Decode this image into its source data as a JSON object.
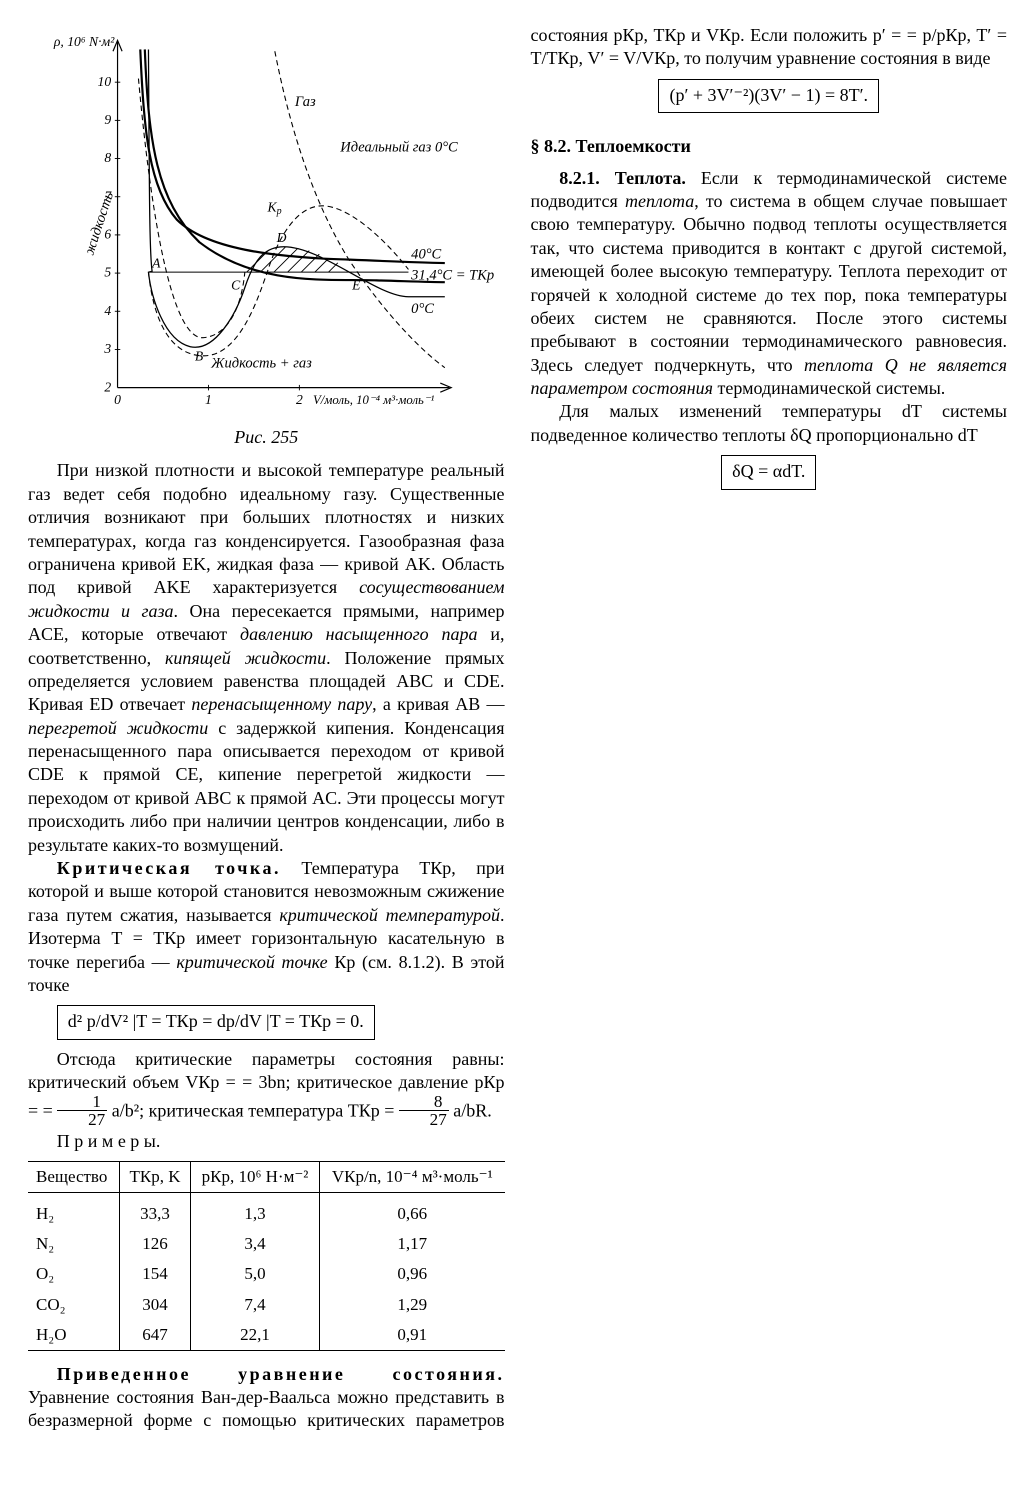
{
  "figure": {
    "caption": "Рис. 255",
    "y_axis_label": "ρ, 10⁶ N·м²",
    "x_axis_label": "V/моль, 10⁻⁴ м³·моль⁻¹",
    "y_ticks": [
      "2",
      "3",
      "4",
      "5",
      "6",
      "7",
      "8",
      "9",
      "10"
    ],
    "x_ticks": [
      "0",
      "1",
      "2"
    ],
    "labels": {
      "gas": "Газ",
      "ideal": "Идеальный газ 0°С",
      "liquid": "жидкость",
      "liquid_gas": "Жидкость + газ",
      "t0": "0°С",
      "t40": "40°С",
      "tcr": "31,4°С = TКр",
      "Kp": "Кр",
      "A": "A",
      "B": "B",
      "C": "C",
      "D": "D",
      "E": "E"
    },
    "background_color": "#ffffff",
    "line_color": "#000000",
    "axis_color": "#000000",
    "thick_line_width": 2.2,
    "thin_line_width": 1.1,
    "dash_pattern": "6 4",
    "font_family": "serif",
    "tick_fontsize": 14,
    "label_fontsize": 14
  },
  "col1": {
    "p1": "При низкой плотности и высокой температуре реальный газ ведет себя подобно идеальному газу. Существенные отличия возникают при больших плотностях и низких температурах, когда газ конденсируется. Газообразная фаза ограничена кривой EK, жидкая фаза — кривой AK. Область под кривой AKE характеризуется ",
    "p1i1": "сосуществованием жидкости и газа",
    "p1b": ". Она пересекается прямыми, например ACE, которые отвечают ",
    "p1i2": "давлению насыщенного пара",
    "p1c": " и, соответственно, ",
    "p1i3": "кипящей жидкости",
    "p1d": ". Положение прямых определяется условием равенства площадей ABC и CDE. Кривая ED отвечает ",
    "p1i4": "перенасыщенному пару",
    "p1e": ", а кривая AB — ",
    "p1i5": "перегретой жидкости",
    "p1f": " с задержкой кипения. Конденсация перенасыщенного пара описывается переходом от кривой CDE к прямой CE, кипение перегретой жидкости — переходом от кривой ABC к прямой AC. Эти процессы могут происходить либо при наличии центров конденсации, либо в результате каких-то возмущений.",
    "p2_lead": "Критическая точка.",
    "p2a": " Температура TКр, при которой и выше которой становится невозможным сжижение газа путем сжатия, называется ",
    "p2i1": "критической температурой",
    "p2b": ". Изотерма T = TКр имеет горизонтальную касательную в точке перегиба — ",
    "p2i2": "критической точке",
    "p2c": " Кр (см. 8.1.2). В этой точке",
    "eq1": "d² p/dV² |T = TКр = dp/dV |T = TКр = 0."
  },
  "col2": {
    "intro": "Отсюда критические параметры состояния равны: критический объем VКр = = 3bn; критическое давление pКр = = ",
    "intro_mid": " a/b²; критическая температура TКр = ",
    "intro_end": " a/bR.",
    "examples_label": "П р и м е р ы.",
    "table": {
      "headers": [
        "Вещество",
        "TКр, K",
        "pКр, 10⁶ Н·м⁻²",
        "VКр/n, 10⁻⁴ м³·моль⁻¹"
      ],
      "rows": [
        [
          "H₂",
          "33,3",
          "1,3",
          "0,66"
        ],
        [
          "N₂",
          "126",
          "3,4",
          "1,17"
        ],
        [
          "O₂",
          "154",
          "5,0",
          "0,96"
        ],
        [
          "CO₂",
          "304",
          "7,4",
          "1,29"
        ],
        [
          "H₂O",
          "647",
          "22,1",
          "0,91"
        ]
      ],
      "col_align": [
        "left",
        "center",
        "center",
        "center"
      ],
      "border_color": "#000000",
      "fontsize": 17
    },
    "reduced_lead": "Приведенное уравнение состояния.",
    "reduced_body_a": " Уравнение состояния Ван-дер-Ваальса можно представить в безразмерной форме с помощью критических параметров состояния pКр, TКр и VКр. Если положить p′ = = p/pКр, T′ = T/TКр, V′ = V/VКр, то получим уравнение состояния в виде",
    "eq2": "(p′ + 3V′⁻²)(3V′ − 1) = 8T′.",
    "sec_title": "§ 8.2. Теплоемкости",
    "s821_lead": "8.2.1. Теплота.",
    "s821_a": " Если к термодинамической системе подводится ",
    "s821_i1": "теплота",
    "s821_b": ", то система в общем случае повышает свою температуру. Обычно подвод теплоты осуществляется так, что система приводится в контакт с другой системой, имеющей более высокую температуру. Теплота переходит от горячей к холодной системе до тех пор, пока температуры обеих систем не сравняются. После этого системы пребывают в состоянии термодинамического равновесия. Здесь следует подчеркнуть, что ",
    "s821_i2": "теплота Q не является параметром состояния",
    "s821_c": " термодинамической системы.",
    "s821_p2": "Для малых изменений температуры dT системы подведенное количество теплоты δQ пропорционально dT",
    "eq3": "δQ = αdT."
  }
}
